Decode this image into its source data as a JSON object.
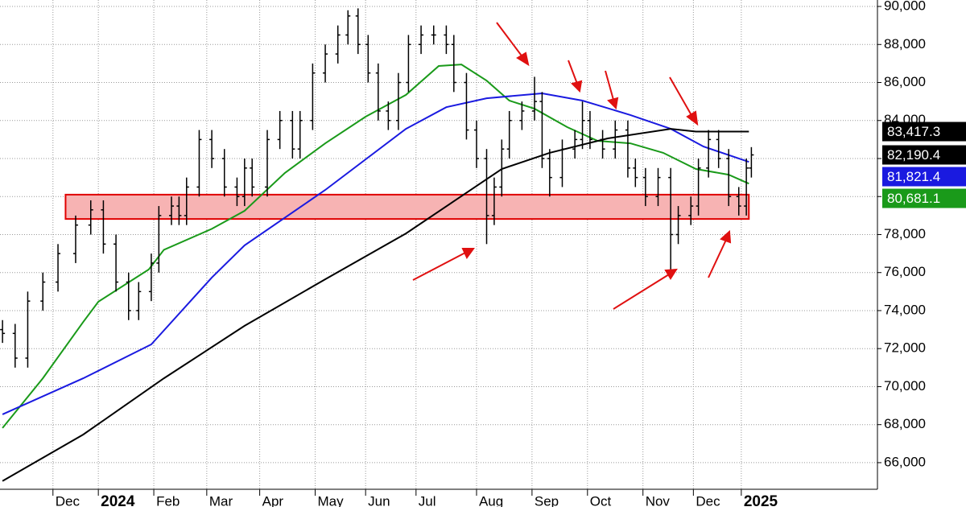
{
  "chart_data": {
    "type": "ohlc",
    "xlim": [
      -1,
      347
    ],
    "ylim": [
      64600,
      90340
    ],
    "yticks": [
      {
        "value": 66000,
        "label": "66,000"
      },
      {
        "value": 68000,
        "label": "68,000"
      },
      {
        "value": 70000,
        "label": "70,000"
      },
      {
        "value": 72000,
        "label": "72,000"
      },
      {
        "value": 74000,
        "label": "74,000"
      },
      {
        "value": 76000,
        "label": "76,000"
      },
      {
        "value": 78000,
        "label": "78,000"
      },
      {
        "value": 80000,
        "label": "80,000"
      },
      {
        "value": 82000,
        "label": "82,000"
      },
      {
        "value": 84000,
        "label": "84,000"
      },
      {
        "value": 86000,
        "label": "86,000"
      },
      {
        "value": 88000,
        "label": "88,000"
      },
      {
        "value": 90000,
        "label": "90,000"
      }
    ],
    "xticks": [
      {
        "value": 20,
        "label": "Dec"
      },
      {
        "value": 38,
        "label": "2024"
      },
      {
        "value": 60,
        "label": "Feb"
      },
      {
        "value": 81,
        "label": "Mar"
      },
      {
        "value": 102,
        "label": "Apr"
      },
      {
        "value": 124,
        "label": "May"
      },
      {
        "value": 144,
        "label": "Jun"
      },
      {
        "value": 164,
        "label": "Jul"
      },
      {
        "value": 188,
        "label": "Aug"
      },
      {
        "value": 210,
        "label": "Sep"
      },
      {
        "value": 232,
        "label": "Oct"
      },
      {
        "value": 254,
        "label": "Nov"
      },
      {
        "value": 274,
        "label": "Dec"
      },
      {
        "value": 293,
        "label": "2025"
      }
    ],
    "grid": true,
    "bar_color": "#000000",
    "x": [
      0,
      5,
      10,
      16,
      22,
      29,
      35,
      40,
      45,
      50,
      54,
      59,
      62,
      67,
      70,
      73,
      78,
      83,
      88,
      93,
      96,
      99,
      105,
      110,
      115,
      118,
      123,
      128,
      133,
      137,
      141,
      145,
      149,
      153,
      157,
      161,
      166,
      171,
      176,
      179,
      184,
      188,
      192,
      195,
      198,
      201,
      206,
      211,
      214,
      217,
      222,
      227,
      230,
      233,
      238,
      243,
      248,
      251,
      255,
      260,
      265,
      268,
      273,
      276,
      280,
      284,
      288,
      292,
      295,
      297
    ],
    "open": [
      73000,
      72800,
      71500,
      74500,
      75500,
      77000,
      78500,
      79300,
      77500,
      75500,
      74000,
      75000,
      76500,
      79000,
      79500,
      79000,
      80500,
      83000,
      82000,
      80500,
      80000,
      81500,
      80500,
      83000,
      84000,
      82500,
      84000,
      86500,
      87500,
      88500,
      89500,
      88000,
      86500,
      84500,
      84000,
      86000,
      88000,
      88500,
      88500,
      88000,
      86000,
      83500,
      82000,
      79000,
      80500,
      82500,
      84000,
      84500,
      85000,
      82000,
      81000,
      82500,
      83000,
      84000,
      83000,
      82500,
      83500,
      81500,
      81000,
      80000,
      81000,
      78000,
      79000,
      79500,
      81500,
      83000,
      82000,
      80000,
      79500,
      81500
    ],
    "high": [
      73500,
      73300,
      75000,
      76000,
      77500,
      79000,
      79800,
      79800,
      78000,
      76000,
      75500,
      77000,
      79500,
      80000,
      80000,
      81000,
      83500,
      83500,
      82500,
      81000,
      82000,
      82000,
      83500,
      84500,
      84500,
      84500,
      87000,
      88000,
      89000,
      89800,
      89900,
      88500,
      87000,
      85000,
      86500,
      88500,
      89000,
      89000,
      89000,
      88500,
      86500,
      84000,
      82500,
      81000,
      83000,
      84500,
      85000,
      86300,
      85500,
      82500,
      83000,
      83500,
      85000,
      84500,
      83500,
      84000,
      84000,
      82000,
      81500,
      81500,
      81500,
      79500,
      80000,
      82000,
      83500,
      83500,
      82500,
      80500,
      82000,
      82600
    ],
    "low": [
      72300,
      71000,
      71000,
      74000,
      75000,
      76500,
      78000,
      77000,
      75000,
      73500,
      73500,
      74500,
      76000,
      78500,
      78500,
      78500,
      80000,
      81500,
      80000,
      79500,
      79500,
      80000,
      80000,
      82500,
      82000,
      82000,
      83500,
      86000,
      87000,
      88000,
      87500,
      86000,
      84000,
      83500,
      83500,
      85500,
      87500,
      88000,
      87500,
      85500,
      83000,
      81500,
      77500,
      78500,
      80000,
      82000,
      83500,
      84000,
      81500,
      80000,
      80500,
      82000,
      82500,
      82500,
      82000,
      82000,
      81000,
      80500,
      79500,
      79500,
      76000,
      77500,
      78500,
      79000,
      81000,
      81500,
      79500,
      79000,
      79000,
      81000
    ],
    "close": [
      72800,
      71500,
      74500,
      75500,
      77000,
      78500,
      79300,
      77500,
      75500,
      74000,
      75000,
      76500,
      79000,
      79500,
      79000,
      80500,
      83000,
      82000,
      80500,
      80000,
      81500,
      80500,
      83000,
      84000,
      82500,
      84000,
      86500,
      87500,
      88500,
      89500,
      88000,
      86500,
      84500,
      84000,
      86000,
      88000,
      88500,
      88500,
      88000,
      86000,
      83500,
      82000,
      79000,
      80500,
      82500,
      84000,
      84500,
      85000,
      82000,
      81000,
      82500,
      83000,
      84000,
      83000,
      82500,
      83500,
      81500,
      81000,
      80000,
      81000,
      78000,
      79000,
      79500,
      81500,
      83000,
      82000,
      80000,
      79500,
      81500,
      82190.4
    ],
    "lines": [
      {
        "color": "#1a9a1a",
        "x": [
          0,
          16,
          32,
          38,
          58,
          64,
          83,
          96,
          112,
          128,
          144,
          160,
          173,
          182,
          192,
          201,
          211,
          224,
          236,
          249,
          262,
          275,
          288,
          296
        ],
        "values": [
          67820,
          70440,
          73400,
          74470,
          76160,
          77200,
          78300,
          79250,
          81240,
          82800,
          84200,
          85350,
          86870,
          86950,
          86100,
          85050,
          84620,
          83650,
          82930,
          82800,
          82300,
          81450,
          81150,
          80681.1
        ]
      },
      {
        "color": "#1a1ae0",
        "x": [
          0,
          32,
          59,
          83,
          96,
          128,
          160,
          176,
          192,
          214,
          230,
          249,
          265,
          278,
          296
        ],
        "values": [
          68540,
          70440,
          72220,
          75740,
          77430,
          80350,
          83560,
          84700,
          85170,
          85430,
          85050,
          84290,
          83560,
          82630,
          81821.4
        ]
      },
      {
        "color": "#000000",
        "x": [
          0,
          32,
          64,
          96,
          128,
          160,
          179,
          198,
          217,
          240,
          265,
          275,
          296
        ],
        "values": [
          65030,
          67480,
          70440,
          73200,
          75650,
          78060,
          79750,
          81450,
          82300,
          83060,
          83560,
          83417.3,
          83417.3
        ]
      }
    ],
    "zone": {
      "x": [
        25,
        296
      ],
      "low": 78820,
      "high": 80100,
      "color": "#f7b3b3",
      "border": "#e00000"
    },
    "price_labels": [
      {
        "value": 83417.3,
        "label": "83,417.3",
        "color": "#000000"
      },
      {
        "value": 82190.4,
        "label": "82,190.4",
        "color": "#000000"
      },
      {
        "value": 81821.4,
        "label": "81,821.4",
        "color": "#1a1ae0"
      },
      {
        "value": 80681.1,
        "label": "80,681.1",
        "color": "#1a9a1a"
      }
    ]
  }
}
